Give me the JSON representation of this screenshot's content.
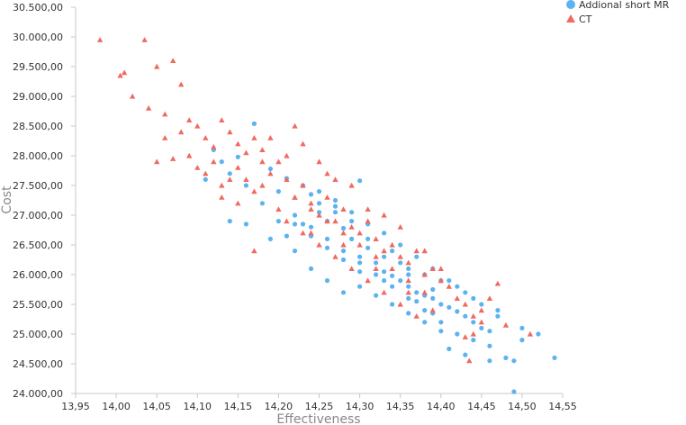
{
  "chart_data": {
    "type": "scatter",
    "title": "",
    "xlabel": "Effectiveness",
    "ylabel": "Cost",
    "xlim": [
      13.95,
      14.55
    ],
    "ylim": [
      24000,
      30500
    ],
    "x_ticks": [
      "13,95",
      "14,00",
      "14,05",
      "14,10",
      "14,15",
      "14,20",
      "14,25",
      "14,30",
      "14,35",
      "14,40",
      "14,45",
      "14,50",
      "14,55"
    ],
    "y_ticks": [
      "24.000,00",
      "24.500,00",
      "25.000,00",
      "25.500,00",
      "26.000,00",
      "26.500,00",
      "27.000,00",
      "27.500,00",
      "28.000,00",
      "28.500,00",
      "29.000,00",
      "29.500,00",
      "30.000,00",
      "30.500,00"
    ],
    "grid": false,
    "legend_position": "top-right",
    "series": [
      {
        "name": "Addional short MR",
        "marker": "circle",
        "color": "#5cb3f0",
        "points": [
          [
            14.17,
            28540
          ],
          [
            14.15,
            27980
          ],
          [
            14.19,
            27780
          ],
          [
            14.21,
            27620
          ],
          [
            14.2,
            27400
          ],
          [
            14.23,
            27500
          ],
          [
            14.25,
            27200
          ],
          [
            14.24,
            27350
          ],
          [
            14.27,
            27050
          ],
          [
            14.3,
            27580
          ],
          [
            14.26,
            26900
          ],
          [
            14.28,
            26780
          ],
          [
            14.29,
            26600
          ],
          [
            14.31,
            26450
          ],
          [
            14.3,
            26300
          ],
          [
            14.32,
            26200
          ],
          [
            14.33,
            26050
          ],
          [
            14.34,
            25980
          ],
          [
            14.35,
            25900
          ],
          [
            14.36,
            25800
          ],
          [
            14.37,
            25700
          ],
          [
            14.38,
            25650
          ],
          [
            14.39,
            25600
          ],
          [
            14.4,
            25500
          ],
          [
            14.41,
            25450
          ],
          [
            14.42,
            25380
          ],
          [
            14.43,
            25300
          ],
          [
            14.44,
            25200
          ],
          [
            14.45,
            25100
          ],
          [
            14.46,
            25050
          ],
          [
            14.36,
            26100
          ],
          [
            14.38,
            26000
          ],
          [
            14.4,
            25900
          ],
          [
            14.42,
            25800
          ],
          [
            14.33,
            26300
          ],
          [
            14.35,
            26200
          ],
          [
            14.31,
            26600
          ],
          [
            14.29,
            26900
          ],
          [
            14.27,
            27150
          ],
          [
            14.25,
            27400
          ],
          [
            14.22,
            27000
          ],
          [
            14.24,
            26800
          ],
          [
            14.26,
            26600
          ],
          [
            14.28,
            26400
          ],
          [
            14.3,
            26200
          ],
          [
            14.32,
            26000
          ],
          [
            14.34,
            25800
          ],
          [
            14.36,
            25600
          ],
          [
            14.38,
            25400
          ],
          [
            14.4,
            25200
          ],
          [
            14.42,
            25000
          ],
          [
            14.44,
            24900
          ],
          [
            14.46,
            24800
          ],
          [
            14.48,
            24600
          ],
          [
            14.49,
            24550
          ],
          [
            14.5,
            25100
          ],
          [
            14.5,
            24900
          ],
          [
            14.47,
            25300
          ],
          [
            14.45,
            25500
          ],
          [
            14.43,
            25700
          ],
          [
            14.41,
            25900
          ],
          [
            14.39,
            26100
          ],
          [
            14.37,
            26300
          ],
          [
            14.35,
            26500
          ],
          [
            14.33,
            26700
          ],
          [
            14.31,
            26850
          ],
          [
            14.29,
            27050
          ],
          [
            14.27,
            27250
          ],
          [
            14.25,
            27050
          ],
          [
            14.23,
            26850
          ],
          [
            14.21,
            26650
          ],
          [
            14.2,
            26900
          ],
          [
            14.18,
            27200
          ],
          [
            14.16,
            27500
          ],
          [
            14.14,
            27700
          ],
          [
            14.13,
            27900
          ],
          [
            14.12,
            28100
          ],
          [
            14.11,
            27600
          ],
          [
            14.14,
            26900
          ],
          [
            14.16,
            26850
          ],
          [
            14.19,
            26600
          ],
          [
            14.22,
            26400
          ],
          [
            14.24,
            26100
          ],
          [
            14.26,
            25900
          ],
          [
            14.28,
            25700
          ],
          [
            14.32,
            25650
          ],
          [
            14.34,
            25500
          ],
          [
            14.36,
            25350
          ],
          [
            14.38,
            25200
          ],
          [
            14.4,
            25050
          ],
          [
            14.41,
            24750
          ],
          [
            14.43,
            24650
          ],
          [
            14.46,
            24550
          ],
          [
            14.49,
            24030
          ],
          [
            14.54,
            24600
          ],
          [
            14.52,
            25000
          ],
          [
            14.47,
            25400
          ],
          [
            14.44,
            25600
          ],
          [
            14.39,
            25750
          ],
          [
            14.37,
            25550
          ],
          [
            14.33,
            25900
          ],
          [
            14.3,
            26050
          ],
          [
            14.28,
            26250
          ],
          [
            14.26,
            26450
          ],
          [
            14.24,
            26650
          ],
          [
            14.22,
            26850
          ],
          [
            14.3,
            25800
          ],
          [
            14.34,
            26400
          ],
          [
            14.36,
            26000
          ],
          [
            14.39,
            25350
          ]
        ]
      },
      {
        "name": "CT",
        "marker": "triangle",
        "color": "#ef6a62",
        "points": [
          [
            13.98,
            29950
          ],
          [
            14.035,
            29950
          ],
          [
            14.05,
            29500
          ],
          [
            14.07,
            29600
          ],
          [
            14.01,
            29400
          ],
          [
            14.005,
            29350
          ],
          [
            14.02,
            29000
          ],
          [
            14.04,
            28800
          ],
          [
            14.06,
            28700
          ],
          [
            14.08,
            29200
          ],
          [
            14.09,
            28600
          ],
          [
            14.1,
            28500
          ],
          [
            14.11,
            28300
          ],
          [
            14.12,
            28150
          ],
          [
            14.13,
            28600
          ],
          [
            14.14,
            28400
          ],
          [
            14.15,
            28200
          ],
          [
            14.16,
            28050
          ],
          [
            14.17,
            28300
          ],
          [
            14.18,
            28100
          ],
          [
            14.07,
            27950
          ],
          [
            14.05,
            27900
          ],
          [
            14.06,
            28300
          ],
          [
            14.08,
            28400
          ],
          [
            14.09,
            28000
          ],
          [
            14.1,
            27800
          ],
          [
            14.11,
            27700
          ],
          [
            14.12,
            27900
          ],
          [
            14.13,
            27500
          ],
          [
            14.14,
            27600
          ],
          [
            14.15,
            27800
          ],
          [
            14.16,
            27600
          ],
          [
            14.17,
            27400
          ],
          [
            14.18,
            27500
          ],
          [
            14.19,
            27700
          ],
          [
            14.2,
            27900
          ],
          [
            14.21,
            27600
          ],
          [
            14.22,
            28500
          ],
          [
            14.22,
            27300
          ],
          [
            14.23,
            27500
          ],
          [
            14.24,
            27200
          ],
          [
            14.25,
            27000
          ],
          [
            14.26,
            27300
          ],
          [
            14.27,
            26900
          ],
          [
            14.28,
            27100
          ],
          [
            14.29,
            26800
          ],
          [
            14.3,
            26700
          ],
          [
            14.31,
            26900
          ],
          [
            14.32,
            26600
          ],
          [
            14.33,
            26400
          ],
          [
            14.34,
            26500
          ],
          [
            14.35,
            26300
          ],
          [
            14.36,
            26200
          ],
          [
            14.37,
            26400
          ],
          [
            14.38,
            26000
          ],
          [
            14.39,
            26100
          ],
          [
            14.4,
            25900
          ],
          [
            14.41,
            25800
          ],
          [
            14.42,
            25600
          ],
          [
            14.43,
            25500
          ],
          [
            14.44,
            25300
          ],
          [
            14.45,
            25200
          ],
          [
            14.46,
            25600
          ],
          [
            14.47,
            25850
          ],
          [
            14.48,
            25150
          ],
          [
            14.51,
            25000
          ],
          [
            14.45,
            25400
          ],
          [
            14.44,
            25000
          ],
          [
            14.43,
            24950
          ],
          [
            14.435,
            24550
          ],
          [
            14.38,
            25700
          ],
          [
            14.36,
            25900
          ],
          [
            14.34,
            26100
          ],
          [
            14.32,
            26300
          ],
          [
            14.3,
            26500
          ],
          [
            14.28,
            26700
          ],
          [
            14.26,
            26900
          ],
          [
            14.24,
            27100
          ],
          [
            14.22,
            27300
          ],
          [
            14.2,
            27100
          ],
          [
            14.21,
            26900
          ],
          [
            14.23,
            26700
          ],
          [
            14.25,
            26500
          ],
          [
            14.27,
            26300
          ],
          [
            14.29,
            26100
          ],
          [
            14.31,
            25900
          ],
          [
            14.33,
            25700
          ],
          [
            14.35,
            25500
          ],
          [
            14.37,
            25300
          ],
          [
            14.29,
            27500
          ],
          [
            14.27,
            27600
          ],
          [
            14.25,
            27900
          ],
          [
            14.23,
            28200
          ],
          [
            14.19,
            28300
          ],
          [
            14.17,
            26400
          ],
          [
            14.15,
            27200
          ],
          [
            14.13,
            27300
          ],
          [
            14.26,
            27700
          ],
          [
            14.31,
            27100
          ],
          [
            14.33,
            27000
          ],
          [
            14.35,
            26800
          ],
          [
            14.38,
            26400
          ],
          [
            14.4,
            26100
          ],
          [
            14.39,
            25400
          ],
          [
            14.36,
            25700
          ],
          [
            14.32,
            26100
          ],
          [
            14.28,
            26500
          ],
          [
            14.24,
            26700
          ],
          [
            14.21,
            28000
          ],
          [
            14.18,
            27900
          ]
        ]
      }
    ]
  }
}
